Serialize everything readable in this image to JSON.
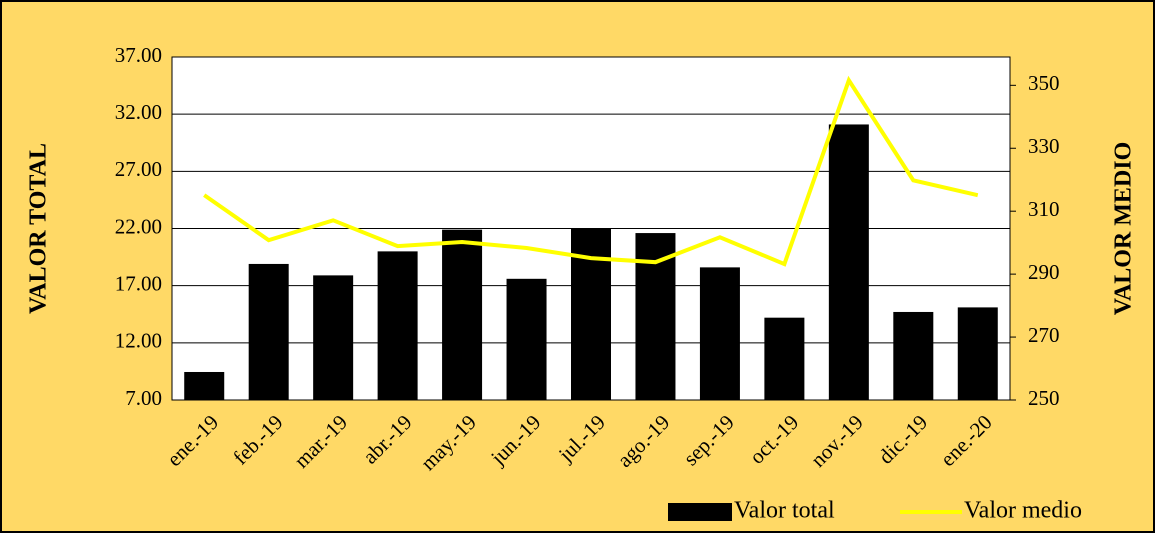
{
  "chart_data": {
    "type": "bar_line",
    "categories": [
      "ene.-19",
      "feb.-19",
      "mar.-19",
      "abr.-19",
      "may.-19",
      "jun.-19",
      "jul.-19",
      "ago.-19",
      "sep.-19",
      "oct.-19",
      "nov.-19",
      "dic.-19",
      "ene.-20"
    ],
    "series": [
      {
        "name": "Valor total",
        "color": "#000000",
        "values": [
          9.45,
          18.9,
          17.9,
          20.0,
          21.9,
          17.6,
          22.0,
          21.6,
          18.6,
          14.2,
          31.1,
          14.7,
          15.1
        ]
      },
      {
        "name": "Valor medio",
        "color": "#ffff00",
        "axis": "y2",
        "values": [
          315.1,
          300.8,
          307.1,
          298.9,
          300.2,
          298.3,
          295.1,
          293.8,
          301.7,
          293.2,
          351.6,
          319.8,
          315.1
        ]
      }
    ],
    "ylabel": "VALOR TOTAL",
    "y2label": "VALOR MEDIO",
    "ylim": [
      7,
      37
    ],
    "yticks": [
      {
        "value": 7,
        "label": "7.00"
      },
      {
        "value": 12,
        "label": "12.00"
      },
      {
        "value": 17,
        "label": "17.00"
      },
      {
        "value": 22,
        "label": "22.00"
      },
      {
        "value": 27,
        "label": "27.00"
      },
      {
        "value": 32,
        "label": "32.00"
      },
      {
        "value": 37,
        "label": "37.00"
      }
    ],
    "y2lim": [
      250,
      359
    ],
    "y2ticks": [
      250,
      270,
      290,
      310,
      330,
      350
    ],
    "grid": true
  }
}
